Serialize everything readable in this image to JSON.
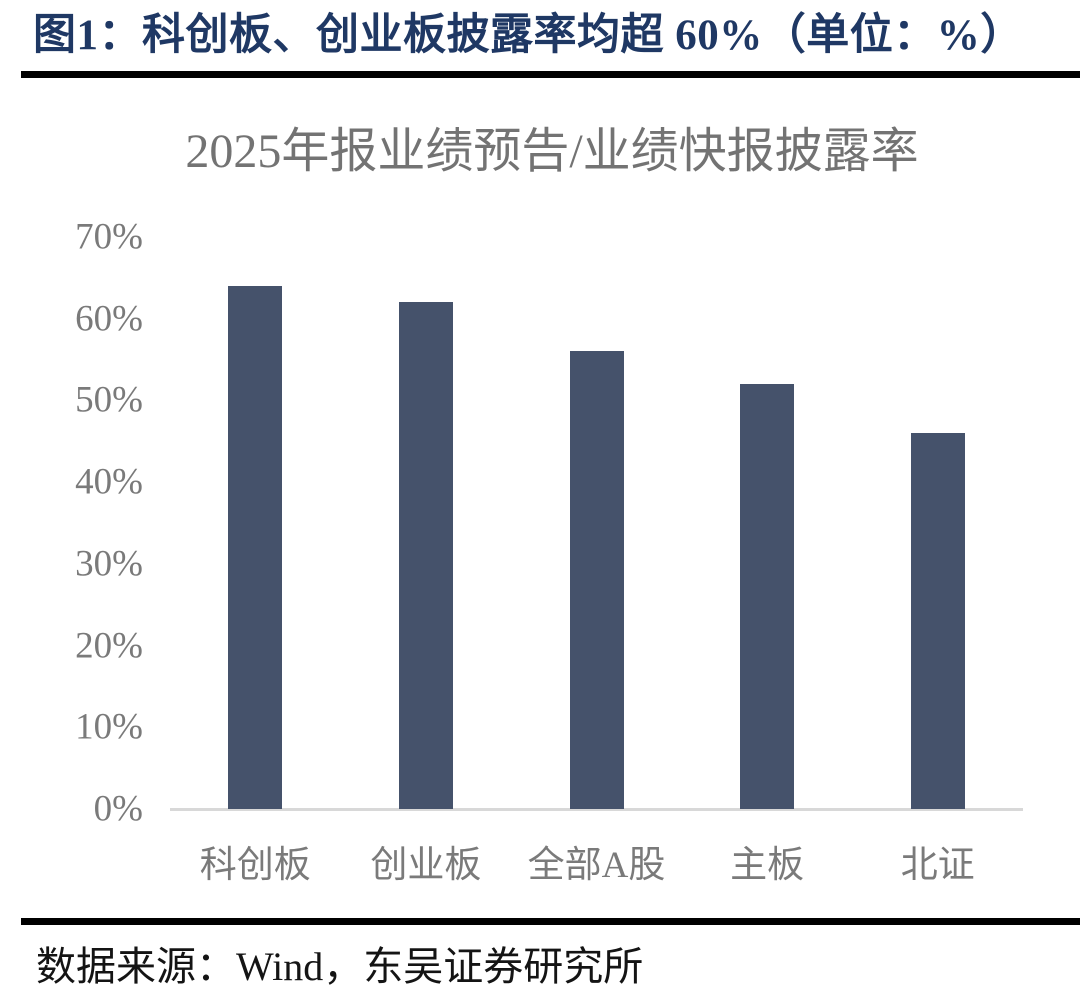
{
  "figure_header": {
    "title": "图1：科创板、创业板披露率均超 60%（单位：%）"
  },
  "chart_data": {
    "type": "bar",
    "title": "2025年报业绩预告/业绩快报披露率",
    "categories": [
      "科创板",
      "创业板",
      "全部A股",
      "主板",
      "北证"
    ],
    "values": [
      64,
      62,
      56,
      52,
      46
    ],
    "unit": "%",
    "xlabel": "",
    "ylabel": "",
    "ylim": [
      0,
      70
    ],
    "ytick_step": 10,
    "ytick_labels": [
      "0%",
      "10%",
      "20%",
      "30%",
      "40%",
      "50%",
      "60%",
      "70%"
    ],
    "grid": false,
    "legend": "none",
    "bar_color": "#45526B"
  },
  "footer": {
    "source": "数据来源：Wind，东吴证券研究所"
  },
  "colors": {
    "header_text": "#1F3864",
    "divider": "#000000",
    "chart_title": "#737373",
    "axis_text": "#7A7A7A",
    "axis_line": "#D8D8D8",
    "bar": "#45526B",
    "source_text": "#141414"
  }
}
